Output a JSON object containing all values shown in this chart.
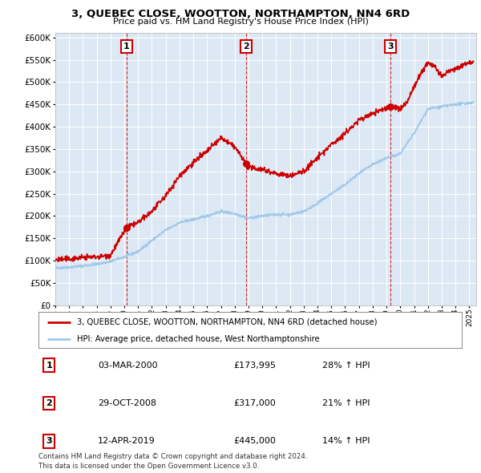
{
  "title": "3, QUEBEC CLOSE, WOOTTON, NORTHAMPTON, NN4 6RD",
  "subtitle": "Price paid vs. HM Land Registry's House Price Index (HPI)",
  "background_color": "#e8f0f8",
  "plot_bg_color": "#dce9f5",
  "outer_bg_color": "#ffffff",
  "legend_line1": "3, QUEBEC CLOSE, WOOTTON, NORTHAMPTON, NN4 6RD (detached house)",
  "legend_line2": "HPI: Average price, detached house, West Northamptonshire",
  "footer1": "Contains HM Land Registry data © Crown copyright and database right 2024.",
  "footer2": "This data is licensed under the Open Government Licence v3.0.",
  "sales": [
    {
      "num": 1,
      "date": "03-MAR-2000",
      "price": "£173,995",
      "pct": "28% ↑ HPI"
    },
    {
      "num": 2,
      "date": "29-OCT-2008",
      "price": "£317,000",
      "pct": "21% ↑ HPI"
    },
    {
      "num": 3,
      "date": "12-APR-2019",
      "price": "£445,000",
      "pct": "14% ↑ HPI"
    }
  ],
  "sale_years": [
    2000.17,
    2008.83,
    2019.28
  ],
  "sale_prices": [
    173995,
    317000,
    445000
  ],
  "red_color": "#cc0000",
  "blue_color": "#a0c8e8",
  "dashed_color": "#cc0000",
  "ylim": [
    0,
    610000
  ],
  "yticks": [
    0,
    50000,
    100000,
    150000,
    200000,
    250000,
    300000,
    350000,
    400000,
    450000,
    500000,
    550000,
    600000
  ],
  "xlim_start": 1995.0,
  "xlim_end": 2025.5,
  "xticks": [
    1995,
    1996,
    1997,
    1998,
    1999,
    2000,
    2001,
    2002,
    2003,
    2004,
    2005,
    2006,
    2007,
    2008,
    2009,
    2010,
    2011,
    2012,
    2013,
    2014,
    2015,
    2016,
    2017,
    2018,
    2019,
    2020,
    2021,
    2022,
    2023,
    2024,
    2025
  ]
}
